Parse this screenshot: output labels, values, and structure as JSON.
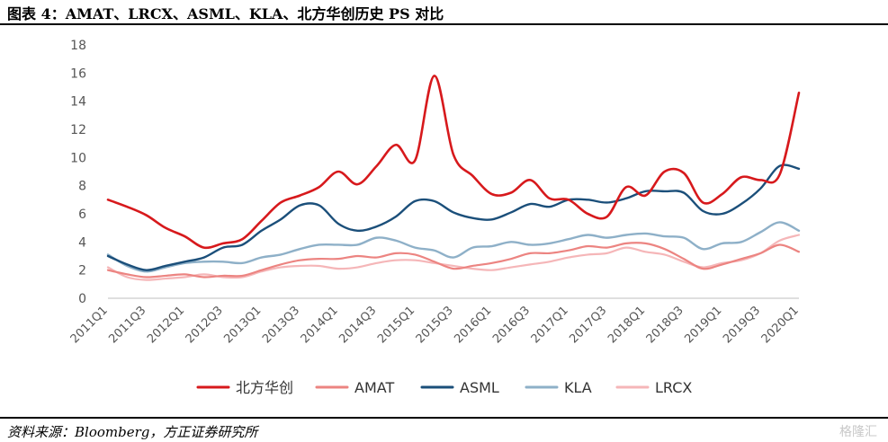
{
  "header": {
    "title": "图表 4：AMAT、LRCX、ASML、KLA、北方华创历史 PS 对比"
  },
  "footer": {
    "source": "资料来源：Bloomberg，方正证券研究所",
    "watermark": "格隆汇"
  },
  "chart_data": {
    "type": "line",
    "title": "",
    "xlabel": "",
    "ylabel": "",
    "ylim": [
      0,
      18
    ],
    "yticks": [
      0,
      2,
      4,
      6,
      8,
      10,
      12,
      14,
      16,
      18
    ],
    "grid": false,
    "legend_position": "bottom",
    "categories": [
      "2011Q1",
      "2011Q2",
      "2011Q3",
      "2011Q4",
      "2012Q1",
      "2012Q2",
      "2012Q3",
      "2012Q4",
      "2013Q1",
      "2013Q2",
      "2013Q3",
      "2013Q4",
      "2014Q1",
      "2014Q2",
      "2014Q3",
      "2014Q4",
      "2015Q1",
      "2015Q2",
      "2015Q3",
      "2015Q4",
      "2016Q1",
      "2016Q2",
      "2016Q3",
      "2016Q4",
      "2017Q1",
      "2017Q2",
      "2017Q3",
      "2017Q4",
      "2018Q1",
      "2018Q2",
      "2018Q3",
      "2018Q4",
      "2019Q1",
      "2019Q2",
      "2019Q3",
      "2019Q4",
      "2020Q1"
    ],
    "tick_labels": [
      "2011Q1",
      "2011Q3",
      "2012Q1",
      "2012Q3",
      "2013Q1",
      "2013Q3",
      "2014Q1",
      "2014Q3",
      "2015Q1",
      "2015Q3",
      "2016Q1",
      "2016Q3",
      "2017Q1",
      "2017Q3",
      "2018Q1",
      "2018Q3",
      "2019Q1",
      "2019Q3",
      "2020Q1"
    ],
    "series": [
      {
        "name": "北方华创",
        "color": "#d7191c",
        "width": 2.6,
        "values": [
          7.0,
          6.5,
          5.9,
          5.0,
          4.4,
          3.6,
          3.9,
          4.2,
          5.5,
          6.8,
          7.3,
          7.9,
          9.0,
          8.1,
          9.4,
          10.9,
          9.8,
          15.8,
          10.2,
          8.7,
          7.4,
          7.5,
          8.4,
          7.1,
          7.0,
          6.0,
          5.8,
          7.9,
          7.3,
          9.0,
          8.9,
          6.8,
          7.4,
          8.6,
          8.4,
          8.8,
          14.6
        ]
      },
      {
        "name": "AMAT",
        "color": "#ec8481",
        "width": 2.2,
        "values": [
          2.0,
          1.7,
          1.5,
          1.6,
          1.7,
          1.5,
          1.6,
          1.6,
          2.0,
          2.4,
          2.7,
          2.8,
          2.8,
          3.0,
          2.9,
          3.2,
          3.1,
          2.6,
          2.1,
          2.3,
          2.5,
          2.8,
          3.2,
          3.2,
          3.4,
          3.7,
          3.6,
          3.9,
          3.9,
          3.5,
          2.8,
          2.1,
          2.4,
          2.8,
          3.2,
          3.8,
          3.3
        ]
      },
      {
        "name": "ASML",
        "color": "#1b4f7a",
        "width": 2.4,
        "values": [
          3.0,
          2.4,
          2.0,
          2.3,
          2.6,
          2.9,
          3.6,
          3.8,
          4.8,
          5.6,
          6.6,
          6.6,
          5.3,
          4.8,
          5.1,
          5.8,
          6.9,
          6.9,
          6.1,
          5.7,
          5.6,
          6.1,
          6.7,
          6.5,
          7.0,
          7.0,
          6.8,
          7.1,
          7.6,
          7.6,
          7.5,
          6.2,
          6.0,
          6.7,
          7.8,
          9.4,
          9.2
        ]
      },
      {
        "name": "KLA",
        "color": "#8eb0c8",
        "width": 2.4,
        "values": [
          3.1,
          2.3,
          1.9,
          2.2,
          2.5,
          2.6,
          2.6,
          2.5,
          2.9,
          3.1,
          3.5,
          3.8,
          3.8,
          3.8,
          4.3,
          4.1,
          3.6,
          3.4,
          2.9,
          3.6,
          3.7,
          4.0,
          3.8,
          3.9,
          4.2,
          4.5,
          4.3,
          4.5,
          4.6,
          4.4,
          4.3,
          3.5,
          3.9,
          4.0,
          4.7,
          5.4,
          4.8
        ]
      },
      {
        "name": "LRCX",
        "color": "#f5b6b8",
        "width": 2.2,
        "values": [
          2.2,
          1.5,
          1.3,
          1.4,
          1.5,
          1.7,
          1.5,
          1.5,
          1.9,
          2.2,
          2.3,
          2.3,
          2.1,
          2.2,
          2.5,
          2.7,
          2.7,
          2.5,
          2.3,
          2.1,
          2.0,
          2.2,
          2.4,
          2.6,
          2.9,
          3.1,
          3.2,
          3.6,
          3.3,
          3.1,
          2.6,
          2.2,
          2.5,
          2.7,
          3.2,
          4.1,
          4.5
        ]
      }
    ]
  }
}
